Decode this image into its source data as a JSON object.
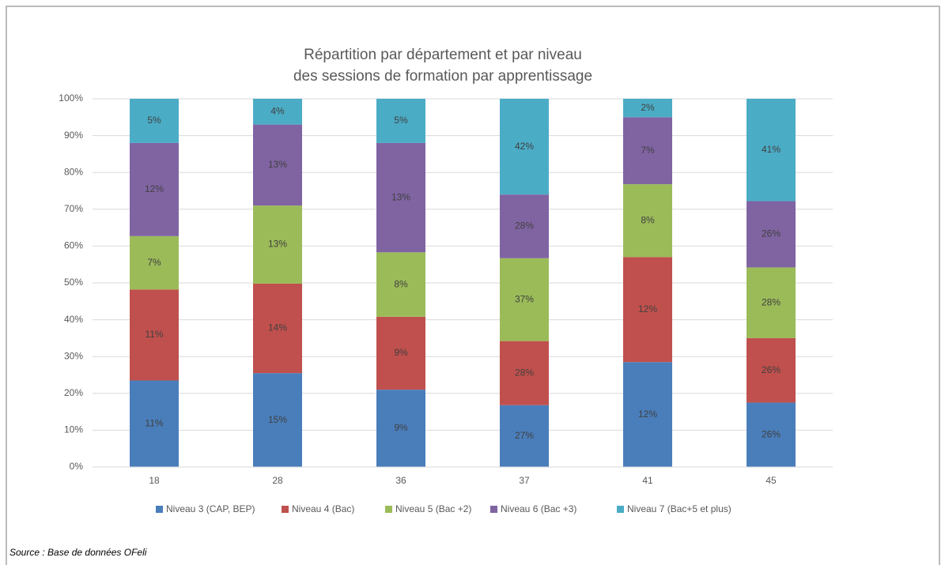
{
  "chart_data": {
    "type": "stacked_bar",
    "title": [
      "Répartition par département et par niveau",
      "des sessions de formation par apprentissage"
    ],
    "categories": [
      "18",
      "28",
      "36",
      "37",
      "41",
      "45"
    ],
    "series": [
      {
        "name": "Niveau 3 (CAP, BEP)",
        "color": "#4a7ebb",
        "values": [
          23.5,
          25.5,
          21,
          16.8,
          28.5,
          17.5
        ],
        "labels": [
          "11%",
          "15%",
          "9%",
          "27%",
          "12%",
          "26%"
        ]
      },
      {
        "name": "Niveau 4 (Bac)",
        "color": "#c0504d",
        "values": [
          24.7,
          24.3,
          19.8,
          17.4,
          28.5,
          17.5
        ],
        "labels": [
          "11%",
          "14%",
          "9%",
          "28%",
          "12%",
          "26%"
        ]
      },
      {
        "name": "Niveau 5 (Bac +2)",
        "color": "#9bbb59",
        "values": [
          14.5,
          21.2,
          17.5,
          22.5,
          19.8,
          19.2
        ],
        "labels": [
          "7%",
          "13%",
          "8%",
          "37%",
          "8%",
          "28%"
        ]
      },
      {
        "name": "Niveau 6 (Bac +3)",
        "color": "#8064a2",
        "values": [
          25.3,
          22,
          29.7,
          17.3,
          18.2,
          18
        ],
        "labels": [
          "12%",
          "13%",
          "13%",
          "28%",
          "7%",
          "26%"
        ]
      },
      {
        "name": "Niveau 7 (Bac+5 et plus)",
        "color": "#4bacc6",
        "values": [
          12,
          7,
          12,
          26,
          5,
          27.8
        ],
        "labels": [
          "5%",
          "4%",
          "5%",
          "42%",
          "2%",
          "41%"
        ]
      }
    ],
    "ylim": [
      0,
      100
    ],
    "yticks": [
      {
        "value": 0,
        "label": "0%"
      },
      {
        "value": 10,
        "label": "10%"
      },
      {
        "value": 20,
        "label": "20%"
      },
      {
        "value": 30,
        "label": "30%"
      },
      {
        "value": 40,
        "label": "40%"
      },
      {
        "value": 50,
        "label": "50%"
      },
      {
        "value": 60,
        "label": "60%"
      },
      {
        "value": 70,
        "label": "70%"
      },
      {
        "value": 80,
        "label": "80%"
      },
      {
        "value": 90,
        "label": "90%"
      },
      {
        "value": 100,
        "label": "100%"
      }
    ],
    "grid": true,
    "legend": "bottom",
    "source": "Source : Base de données OFeli"
  }
}
